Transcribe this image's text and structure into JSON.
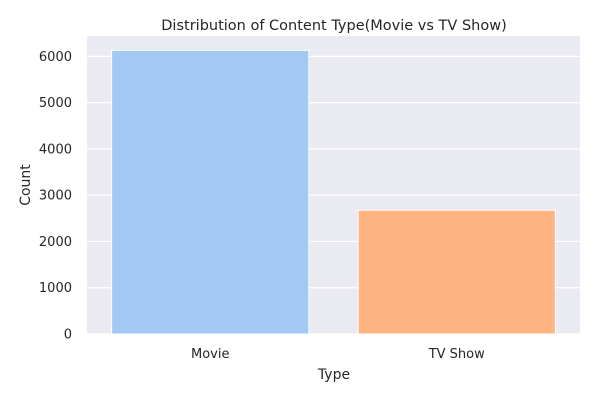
{
  "chart_data": {
    "type": "bar",
    "title": "Distribution of Content Type(Movie vs TV Show)",
    "xlabel": "Type",
    "ylabel": "Count",
    "categories": [
      "Movie",
      "TV Show"
    ],
    "values": [
      6131,
      2676
    ],
    "ylim": [
      0,
      6440
    ],
    "yticks": [
      0,
      1000,
      2000,
      3000,
      4000,
      5000,
      6000
    ],
    "grid": true,
    "colors": [
      "#a1c9f4",
      "#ffb482"
    ],
    "background": "#eaeaf2",
    "gridColor": "#ffffff"
  }
}
